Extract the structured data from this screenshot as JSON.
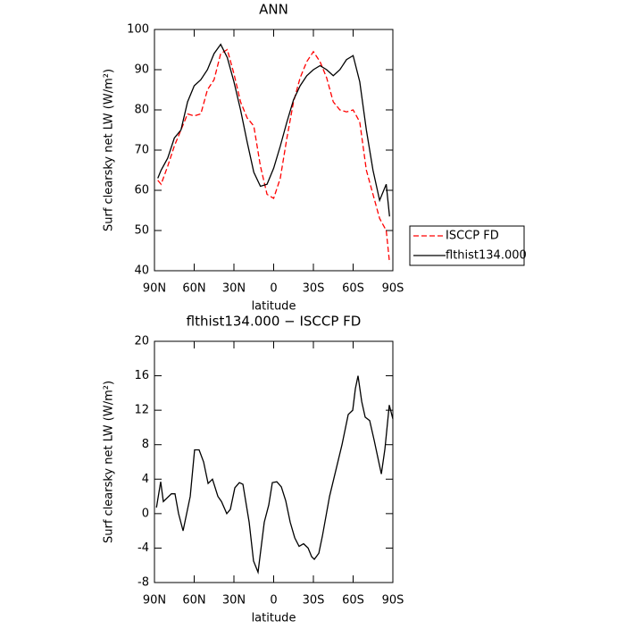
{
  "chart_data": [
    {
      "type": "line",
      "title": "ANN",
      "x_label": "latitude",
      "y_label": "Surf clearsky net LW (W/m²)",
      "x": [
        87.5,
        85,
        80,
        75,
        70,
        65,
        60,
        55,
        50,
        45,
        40,
        35,
        30,
        25,
        20,
        15,
        10,
        5,
        0,
        -5,
        -10,
        -15,
        -20,
        -25,
        -30,
        -35,
        -40,
        -45,
        -50,
        -55,
        -60,
        -65,
        -70,
        -75,
        -80,
        -85,
        -87.5
      ],
      "series": [
        {
          "name": "ISCCP FD",
          "color": "#ff0000",
          "line_style": "dashed",
          "values": [
            62.5,
            61.5,
            66,
            71,
            75,
            79,
            78.5,
            79,
            85,
            87.5,
            94,
            95,
            89,
            82,
            78,
            76,
            66,
            59,
            58,
            63,
            73,
            82,
            88,
            92,
            94.5,
            92,
            88,
            82,
            80,
            79.5,
            80,
            77,
            65,
            59,
            53,
            50,
            42
          ]
        },
        {
          "name": "flthist134.000",
          "color": "#000000",
          "line_style": "solid",
          "values": [
            63,
            65,
            68,
            73,
            75,
            82,
            86,
            87.5,
            90,
            94,
            96.3,
            93,
            87,
            80,
            72,
            64.5,
            61,
            61.5,
            65.5,
            71,
            77,
            82.5,
            86,
            88.5,
            90,
            91,
            90,
            88.5,
            90,
            92.5,
            93.5,
            87,
            75,
            65,
            57.5,
            61.5,
            53.5
          ]
        }
      ],
      "xlim": [
        90,
        -90
      ],
      "xticks": [
        {
          "value": 90,
          "label": "90N"
        },
        {
          "value": 60,
          "label": "60N"
        },
        {
          "value": 30,
          "label": "30N"
        },
        0,
        {
          "value": -30,
          "label": "30S"
        },
        {
          "value": -60,
          "label": "60S"
        },
        {
          "value": -90,
          "label": "90S"
        }
      ],
      "ylim": [
        40,
        100
      ],
      "yticks": [
        40,
        50,
        60,
        70,
        80,
        90,
        100
      ],
      "legend": "right"
    },
    {
      "type": "line",
      "title": "flthist134.000 − ISCCP FD",
      "x_label": "latitude",
      "y_label": "Surf clearsky net LW (W/m²)",
      "x": [
        88.5,
        85.3,
        83.3,
        77.2,
        74.5,
        71.8,
        68.4,
        63,
        59.7,
        56.3,
        52.9,
        49.5,
        46.2,
        42.1,
        39.4,
        35.4,
        32.7,
        29.3,
        25.9,
        23.2,
        18.5,
        15.2,
        11.8,
        7.1,
        3.7,
        1,
        -2.4,
        -5.8,
        -9.1,
        -12.5,
        -15.9,
        -19.2,
        -22.6,
        -26,
        -28.7,
        -30.7,
        -34.1,
        -36.8,
        -42.2,
        -51.6,
        -56.3,
        -59.7,
        -61.7,
        -63.7,
        -66.5,
        -69.1,
        -72.5,
        -75.9,
        -81.3,
        -84,
        -87.3,
        -90
      ],
      "values": [
        0.7,
        3.7,
        1.4,
        2.3,
        2.3,
        0,
        -2,
        2,
        7.4,
        7.4,
        6,
        3.5,
        4,
        2,
        1.4,
        0,
        0.5,
        3,
        3.6,
        3.4,
        -1,
        -5.5,
        -6.8,
        -1,
        1,
        3.6,
        3.7,
        3.1,
        1.5,
        -1,
        -2.8,
        -3.8,
        -3.5,
        -4,
        -5,
        -5.3,
        -4.6,
        -2.6,
        2,
        8,
        11.5,
        12,
        14.5,
        16,
        13,
        11.2,
        10.8,
        8.5,
        4.6,
        7.5,
        12.6,
        11
      ],
      "color": "#000000",
      "xlim": [
        90,
        -90
      ],
      "xticks": [
        {
          "value": 90,
          "label": "90N"
        },
        {
          "value": 60,
          "label": "60N"
        },
        {
          "value": 30,
          "label": "30N"
        },
        0,
        {
          "value": -30,
          "label": "30S"
        },
        {
          "value": -60,
          "label": "60S"
        },
        {
          "value": -90,
          "label": "90S"
        }
      ],
      "ylim": [
        -8,
        20
      ],
      "yticks": [
        -8,
        -4,
        0,
        4,
        8,
        12,
        16,
        20
      ]
    }
  ]
}
